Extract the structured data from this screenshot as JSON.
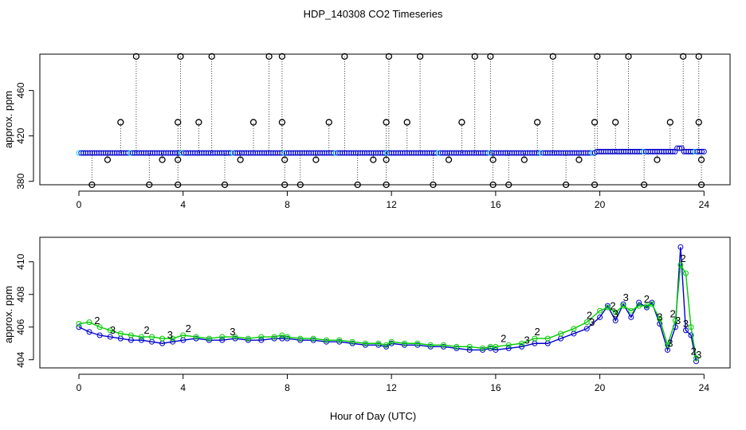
{
  "page": {
    "title": "HDP_140308  CO2 Timeseries",
    "xlabel": "Hour of Day (UTC)"
  },
  "colors": {
    "black": "#000000",
    "blue": "#0000cc",
    "green": "#00cc00",
    "cyan": "#00e5e5",
    "axis": "#000000"
  },
  "chart_data": [
    {
      "type": "scatter",
      "title": "",
      "xlabel": "",
      "ylabel": "approx. ppm",
      "xlim": [
        -1.5,
        25
      ],
      "ylim": [
        377,
        492
      ],
      "xticks": [
        0,
        4,
        8,
        12,
        16,
        20,
        24
      ],
      "yticks": [
        380,
        420,
        460
      ],
      "grid": false,
      "baseline": 405,
      "spikes_high": [
        2.2,
        3.9,
        5.1,
        7.3,
        7.8,
        10.2,
        11.9,
        13.1,
        15.2,
        15.8,
        18.2,
        19.9,
        21.1,
        23.2,
        23.8
      ],
      "spikes_mid": [
        1.6,
        3.8,
        4.6,
        6.7,
        7.8,
        9.6,
        11.8,
        12.6,
        14.7,
        17.6,
        19.8,
        20.6,
        22.7,
        23.8
      ],
      "spikes_low": [
        0.5,
        2.7,
        3.8,
        5.6,
        7.9,
        8.5,
        10.7,
        11.8,
        13.6,
        15.9,
        16.5,
        18.7,
        19.8,
        21.7,
        23.9
      ],
      "spikes_dip": [
        1.1,
        3.2,
        3.8,
        6.2,
        7.9,
        9.1,
        11.3,
        11.8,
        14.2,
        15.9,
        17.1,
        19.2,
        22.2,
        23.9
      ],
      "spike_values": {
        "high": 490,
        "mid": 432,
        "low": 377,
        "dip": 399
      }
    },
    {
      "type": "line",
      "title": "",
      "xlabel": "Hour of Day (UTC)",
      "ylabel": "approx. ppm",
      "xlim": [
        -1.5,
        25
      ],
      "ylim": [
        403.5,
        411.5
      ],
      "xticks": [
        0,
        4,
        8,
        12,
        16,
        20,
        24
      ],
      "yticks": [
        404,
        406,
        408,
        410
      ],
      "grid": false,
      "series": [
        {
          "marker": "3",
          "x": [
            0.0,
            0.4,
            0.8,
            1.2,
            1.6,
            2.0,
            2.4,
            2.8,
            3.2,
            3.6,
            4.0,
            4.5,
            5.0,
            5.5,
            6.0,
            6.5,
            7.0,
            7.5,
            7.8,
            8.0,
            8.5,
            9.0,
            9.5,
            10.0,
            10.5,
            11.0,
            11.5,
            11.8,
            12.0,
            12.5,
            13.0,
            13.5,
            14.0,
            14.5,
            15.0,
            15.5,
            15.8,
            16.0,
            16.5,
            17.0,
            17.5,
            18.0,
            18.5,
            19.0,
            19.5,
            20.0,
            20.3,
            20.6,
            20.9,
            21.2,
            21.5,
            21.8,
            22.0,
            22.3,
            22.6,
            22.9,
            23.1,
            23.3,
            23.5,
            23.7
          ],
          "y": [
            406.0,
            405.7,
            405.5,
            405.4,
            405.3,
            405.2,
            405.2,
            405.1,
            405.0,
            405.1,
            405.2,
            405.3,
            405.2,
            405.2,
            405.3,
            405.2,
            405.2,
            405.3,
            405.3,
            405.3,
            405.2,
            405.2,
            405.1,
            405.1,
            405.0,
            404.9,
            404.9,
            404.8,
            405.0,
            404.9,
            404.9,
            404.8,
            404.8,
            404.7,
            404.6,
            404.6,
            404.7,
            404.6,
            404.7,
            404.8,
            405.0,
            405.0,
            405.3,
            405.6,
            405.9,
            406.6,
            407.3,
            406.4,
            407.4,
            406.6,
            407.5,
            407.2,
            407.5,
            406.2,
            404.6,
            406.0,
            410.9,
            405.8,
            405.5,
            403.9
          ]
        },
        {
          "marker": "2",
          "x": [
            0.0,
            0.4,
            0.8,
            1.2,
            1.6,
            2.0,
            2.4,
            2.8,
            3.2,
            3.6,
            4.0,
            4.5,
            5.0,
            5.5,
            6.0,
            6.5,
            7.0,
            7.5,
            7.8,
            8.0,
            8.5,
            9.0,
            9.5,
            10.0,
            10.5,
            11.0,
            11.5,
            11.8,
            12.0,
            12.5,
            13.0,
            13.5,
            14.0,
            14.5,
            15.0,
            15.5,
            15.8,
            16.0,
            16.5,
            17.0,
            17.5,
            18.0,
            18.5,
            19.0,
            19.5,
            20.0,
            20.3,
            20.6,
            20.9,
            21.2,
            21.5,
            21.8,
            22.0,
            22.3,
            22.6,
            22.9,
            23.1,
            23.3,
            23.5,
            23.7
          ],
          "y": [
            406.2,
            406.3,
            406.0,
            405.8,
            405.6,
            405.5,
            405.4,
            405.4,
            405.3,
            405.3,
            405.5,
            405.4,
            405.3,
            405.4,
            405.4,
            405.3,
            405.4,
            405.4,
            405.5,
            405.4,
            405.3,
            405.3,
            405.2,
            405.2,
            405.1,
            405.0,
            405.0,
            404.9,
            405.1,
            405.0,
            405.0,
            404.9,
            404.9,
            404.8,
            404.8,
            404.7,
            404.8,
            404.8,
            404.9,
            405.0,
            405.3,
            405.3,
            405.6,
            405.9,
            406.3,
            407.0,
            407.2,
            406.9,
            407.3,
            407.0,
            407.3,
            407.3,
            407.4,
            406.5,
            404.9,
            406.4,
            409.8,
            409.3,
            406.0,
            404.1
          ]
        }
      ]
    }
  ]
}
